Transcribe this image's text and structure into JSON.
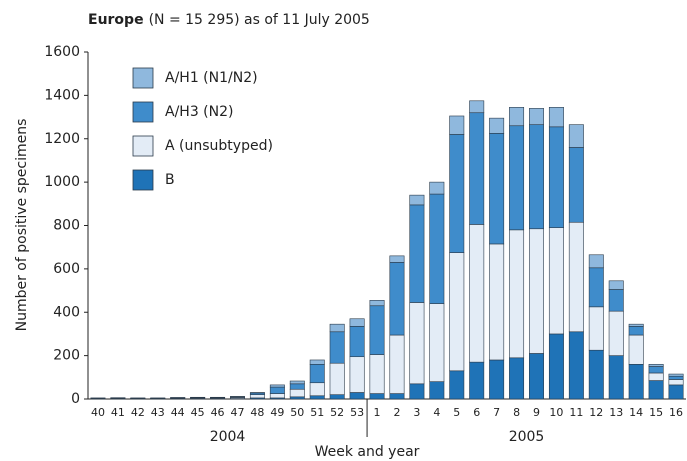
{
  "chart_data": {
    "type": "stacked_bar",
    "title_bold": "Europe",
    "title_rest": "(N = 15 295) as of 11 July 2005",
    "x_label": "Week and year",
    "y_label": "Number of positive specimens",
    "categories": [
      "40",
      "41",
      "42",
      "43",
      "44",
      "45",
      "46",
      "47",
      "48",
      "49",
      "50",
      "51",
      "52",
      "53",
      "1",
      "2",
      "3",
      "4",
      "5",
      "6",
      "7",
      "8",
      "9",
      "10",
      "11",
      "12",
      "13",
      "14",
      "15",
      "16"
    ],
    "years": [
      "2004",
      "2005"
    ],
    "series": [
      {
        "name": "A/H1 (N1/N2)",
        "color": "#8fb8dd",
        "values": [
          1,
          1,
          1,
          1,
          1,
          1,
          1,
          2,
          2,
          10,
          13,
          20,
          35,
          35,
          25,
          30,
          45,
          55,
          85,
          55,
          70,
          85,
          75,
          90,
          105,
          60,
          40,
          10,
          10,
          10
        ]
      },
      {
        "name": "A/H3 (N2)",
        "color": "#3f8ccb",
        "values": [
          1,
          2,
          1,
          1,
          2,
          2,
          2,
          3,
          8,
          30,
          25,
          85,
          145,
          140,
          225,
          335,
          450,
          505,
          545,
          515,
          510,
          480,
          480,
          465,
          345,
          180,
          100,
          40,
          30,
          15
        ]
      },
      {
        "name": "A (unsubtyped)",
        "color": "#e3ecf6",
        "values": [
          2,
          2,
          2,
          2,
          3,
          3,
          3,
          5,
          15,
          20,
          35,
          60,
          145,
          165,
          180,
          270,
          375,
          360,
          545,
          635,
          535,
          590,
          575,
          490,
          505,
          200,
          205,
          135,
          35,
          25
        ]
      },
      {
        "name": "B",
        "color": "#1f73b7",
        "values": [
          1,
          1,
          1,
          1,
          1,
          2,
          2,
          2,
          5,
          5,
          10,
          15,
          20,
          30,
          25,
          25,
          70,
          80,
          130,
          170,
          180,
          190,
          210,
          300,
          310,
          225,
          200,
          160,
          85,
          65
        ]
      }
    ],
    "ylim": [
      0,
      1600
    ],
    "yticks": [
      0,
      200,
      400,
      600,
      800,
      1000,
      1200,
      1400,
      1600
    ],
    "grid": false
  }
}
